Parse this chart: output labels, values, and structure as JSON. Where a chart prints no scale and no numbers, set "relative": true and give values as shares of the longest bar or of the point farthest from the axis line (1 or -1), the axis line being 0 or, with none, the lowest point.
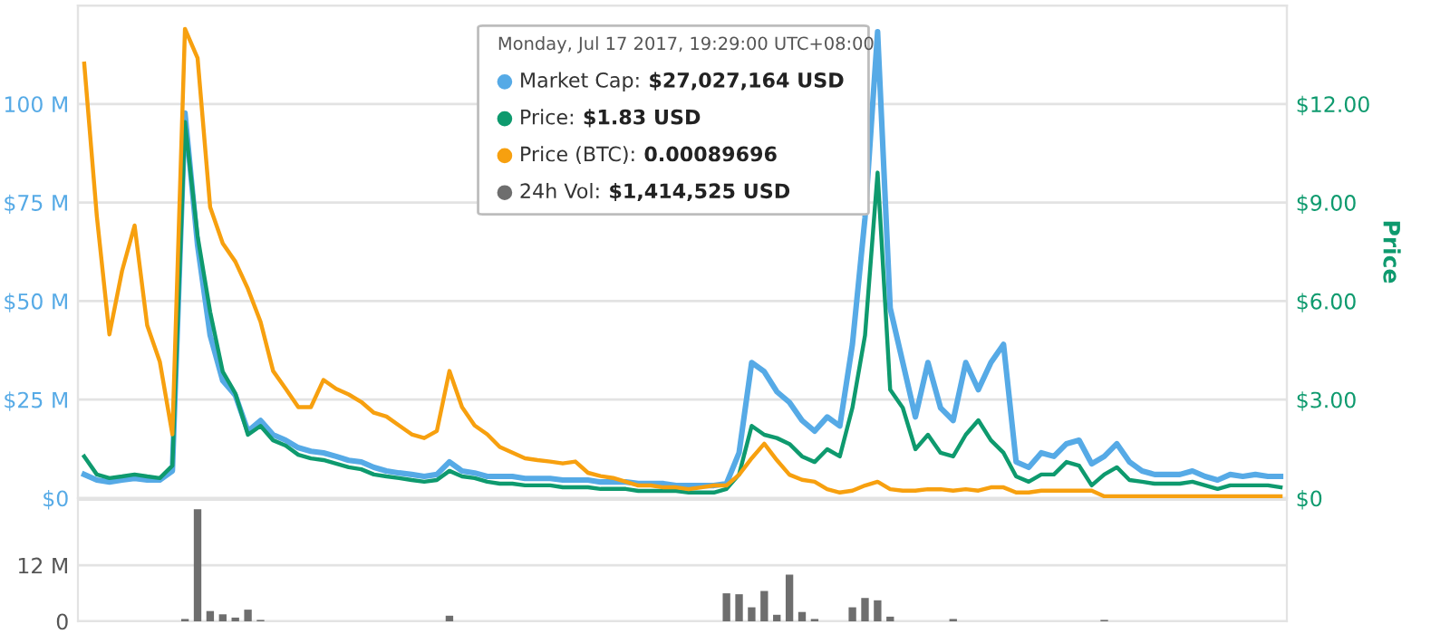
{
  "chart_data": [
    {
      "type": "line",
      "categories": [
        null,
        null,
        null,
        null,
        null,
        null,
        null,
        null,
        null,
        null,
        null,
        null,
        null,
        null,
        null,
        null,
        null,
        null,
        null,
        null,
        null,
        null,
        null,
        null,
        null,
        null,
        null,
        null,
        null,
        null,
        null,
        null,
        null,
        null,
        null,
        null,
        null,
        null,
        null,
        null,
        null,
        null,
        null,
        null,
        null,
        null,
        null,
        null,
        null,
        null,
        null,
        null,
        null,
        null,
        null,
        null,
        null,
        null,
        null,
        null,
        null,
        null,
        null,
        null,
        null,
        null,
        null,
        null,
        null,
        null,
        null,
        null,
        null,
        null,
        null,
        null,
        null,
        null,
        null,
        null,
        null,
        null,
        null,
        null,
        null,
        null,
        null,
        null,
        null,
        null,
        null,
        null,
        null,
        null,
        null,
        null
      ],
      "series": [
        {
          "name": "Market Cap:",
          "color": "#56aae6",
          "values": [
            6.0,
            4.6,
            4.1,
            4.6,
            5.0,
            4.6,
            4.6,
            6.9,
            97.7,
            64.2,
            41.3,
            29.8,
            26.1,
            17.0,
            19.7,
            16.1,
            14.7,
            12.8,
            11.9,
            11.5,
            10.6,
            9.6,
            9.2,
            7.8,
            6.9,
            6.4,
            6.0,
            5.5,
            6.0,
            9.2,
            6.9,
            6.4,
            5.5,
            5.5,
            5.5,
            5.0,
            5.0,
            5.0,
            4.6,
            4.6,
            4.6,
            4.1,
            4.1,
            4.1,
            3.7,
            3.7,
            3.7,
            3.2,
            3.2,
            3.2,
            3.2,
            3.7,
            11.5,
            34.4,
            32.1,
            27.0,
            24.3,
            19.7,
            17.0,
            20.6,
            18.3,
            39.0,
            71.1,
            118.3,
            48.2,
            34.4,
            20.6,
            34.4,
            22.9,
            19.7,
            34.4,
            27.5,
            34.4,
            39.0,
            9.2,
            7.8,
            11.5,
            10.6,
            13.8,
            14.7,
            8.7,
            10.6,
            13.8,
            9.2,
            6.9,
            6.0,
            6.0,
            6.0,
            6.9,
            5.5,
            4.6,
            6.0,
            5.5,
            6.0,
            5.5,
            5.5
          ]
        },
        {
          "name": "Price:",
          "color": "#0e9a6e",
          "axis": "y2",
          "values": [
            1.27,
            0.72,
            0.61,
            0.66,
            0.72,
            0.66,
            0.61,
            0.99,
            11.45,
            7.98,
            5.67,
            3.85,
            3.19,
            1.93,
            2.2,
            1.76,
            1.6,
            1.32,
            1.21,
            1.16,
            1.05,
            0.94,
            0.88,
            0.72,
            0.66,
            0.61,
            0.55,
            0.5,
            0.55,
            0.83,
            0.66,
            0.61,
            0.5,
            0.44,
            0.44,
            0.39,
            0.39,
            0.39,
            0.33,
            0.33,
            0.33,
            0.28,
            0.28,
            0.28,
            0.22,
            0.22,
            0.22,
            0.22,
            0.17,
            0.17,
            0.17,
            0.28,
            0.72,
            2.2,
            1.93,
            1.83,
            1.65,
            1.27,
            1.1,
            1.49,
            1.27,
            2.75,
            4.95,
            9.91,
            3.3,
            2.75,
            1.49,
            1.93,
            1.38,
            1.27,
            1.93,
            2.37,
            1.76,
            1.38,
            0.66,
            0.5,
            0.72,
            0.72,
            1.1,
            0.99,
            0.39,
            0.72,
            0.94,
            0.55,
            0.5,
            0.44,
            0.44,
            0.44,
            0.5,
            0.39,
            0.28,
            0.39,
            0.39,
            0.39,
            0.39,
            0.33
          ]
        }
      ],
      "ylim": [
        0,
        125
      ],
      "yticks": [
        {
          "value": 0,
          "label": "$0"
        },
        {
          "value": 25,
          "label": "$25 M"
        },
        {
          "value": 50,
          "label": "$50 M"
        },
        {
          "value": 75,
          "label": "$75 M"
        },
        {
          "value": 100,
          "label": "100 M"
        },
        {
          "value": 125,
          "label": null
        }
      ],
      "y2lim": [
        0,
        15
      ],
      "y2ticks": [
        {
          "value": 0,
          "label": "$0"
        },
        {
          "value": 3,
          "label": "$3.00"
        },
        {
          "value": 6,
          "label": "$6.00"
        },
        {
          "value": 9,
          "label": "$9.00"
        },
        {
          "value": 12,
          "label": "$12.00"
        }
      ],
      "y2label": "Price",
      "grid": "y",
      "legend": "top",
      "legend_title": "Monday, Jul 17 2017, 19:29:00 UTC+08:00",
      "annotations": [
        "$27,027,164 USD",
        "$1.83 USD"
      ]
    },
    {
      "type": "line",
      "relative": true,
      "categories": [
        null,
        null,
        null,
        null,
        null,
        null,
        null,
        null,
        null,
        null,
        null,
        null,
        null,
        null,
        null,
        null,
        null,
        null,
        null,
        null,
        null,
        null,
        null,
        null,
        null,
        null,
        null,
        null,
        null,
        null,
        null,
        null,
        null,
        null,
        null,
        null,
        null,
        null,
        null,
        null,
        null,
        null,
        null,
        null,
        null,
        null,
        null,
        null,
        null,
        null,
        null,
        null,
        null,
        null,
        null,
        null,
        null,
        null,
        null,
        null,
        null,
        null,
        null,
        null,
        null,
        null,
        null,
        null,
        null,
        null,
        null,
        null,
        null,
        null,
        null,
        null,
        null,
        null,
        null,
        null,
        null,
        null,
        null,
        null,
        null,
        null,
        null,
        null,
        null,
        null,
        null,
        null,
        null,
        null,
        null,
        null
      ],
      "series": [
        {
          "name": "Price (BTC):",
          "color": "#f7a00f",
          "values": [
            0.926,
            0.601,
            0.349,
            0.484,
            0.581,
            0.368,
            0.291,
            0.136,
            1,
            0.938,
            0.62,
            0.543,
            0.504,
            0.446,
            0.376,
            0.271,
            0.233,
            0.194,
            0.194,
            0.252,
            0.233,
            0.221,
            0.205,
            0.182,
            0.174,
            0.155,
            0.136,
            0.128,
            0.143,
            0.271,
            0.194,
            0.155,
            0.136,
            0.109,
            0.097,
            0.085,
            0.081,
            0.078,
            0.074,
            0.078,
            0.054,
            0.047,
            0.043,
            0.035,
            0.027,
            0.027,
            0.023,
            0.023,
            0.019,
            0.023,
            0.027,
            0.027,
            0.05,
            0.085,
            0.116,
            0.081,
            0.05,
            0.039,
            0.035,
            0.019,
            0.012,
            0.016,
            0.027,
            0.035,
            0.019,
            0.016,
            0.016,
            0.019,
            0.019,
            0.016,
            0.019,
            0.016,
            0.023,
            0.023,
            0.012,
            0.012,
            0.016,
            0.016,
            0.016,
            0.016,
            0.016,
            0.004,
            0.004,
            0.004,
            0.004,
            0.004,
            0.004,
            0.004,
            0.004,
            0.004,
            0.004,
            0.004,
            0.004,
            0.004,
            0.004,
            0.004
          ]
        }
      ],
      "annotations": [
        "0.00089696"
      ]
    },
    {
      "type": "bar",
      "categories": [
        null,
        null,
        null,
        null,
        null,
        null,
        null,
        null,
        null,
        null,
        null,
        null,
        null,
        null,
        null,
        null,
        null,
        null,
        null,
        null,
        null,
        null,
        null,
        null,
        null,
        null,
        null,
        null,
        null,
        null,
        null,
        null,
        null,
        null,
        null,
        null,
        null,
        null,
        null,
        null,
        null,
        null,
        null,
        null,
        null,
        null,
        null,
        null,
        null,
        null,
        null,
        null,
        null,
        null,
        null,
        null,
        null,
        null,
        null,
        null,
        null,
        null,
        null,
        null,
        null,
        null,
        null,
        null,
        null,
        null,
        null,
        null,
        null,
        null,
        null,
        null,
        null,
        null,
        null,
        null,
        null,
        null,
        null,
        null,
        null,
        null,
        null,
        null,
        null,
        null,
        null,
        null,
        null,
        null,
        null,
        null
      ],
      "series": [
        {
          "name": "24h Vol:",
          "color": "#6e6e6e",
          "values": [
            0,
            0,
            0,
            0,
            0,
            0,
            0,
            0,
            0.5,
            24,
            2.2,
            1.5,
            0.8,
            2.5,
            0.3,
            0,
            0,
            0,
            0,
            0,
            0,
            0,
            0,
            0,
            0,
            0,
            0,
            0,
            0,
            1.2,
            0,
            0,
            0,
            0,
            0,
            0,
            0,
            0,
            0,
            0,
            0,
            0,
            0,
            0,
            0,
            0,
            0,
            0,
            0,
            0,
            0,
            6,
            5.8,
            3,
            6.5,
            1.4,
            10,
            2,
            0.5,
            0,
            0,
            3,
            5,
            4.5,
            1,
            0,
            0,
            0,
            0,
            0.5,
            0,
            0,
            0,
            0,
            0,
            0,
            0,
            0,
            0,
            0,
            0,
            0.3,
            0,
            0,
            0,
            0,
            0,
            0,
            0,
            0,
            0,
            0,
            0,
            0,
            0,
            0
          ]
        }
      ],
      "ylim": [
        0,
        26
      ],
      "yticks": [
        {
          "value": 0,
          "label": "0"
        },
        {
          "value": 12,
          "label": "12 M"
        }
      ],
      "grid": "y",
      "annotations": [
        "$1,414,525 USD"
      ]
    }
  ]
}
